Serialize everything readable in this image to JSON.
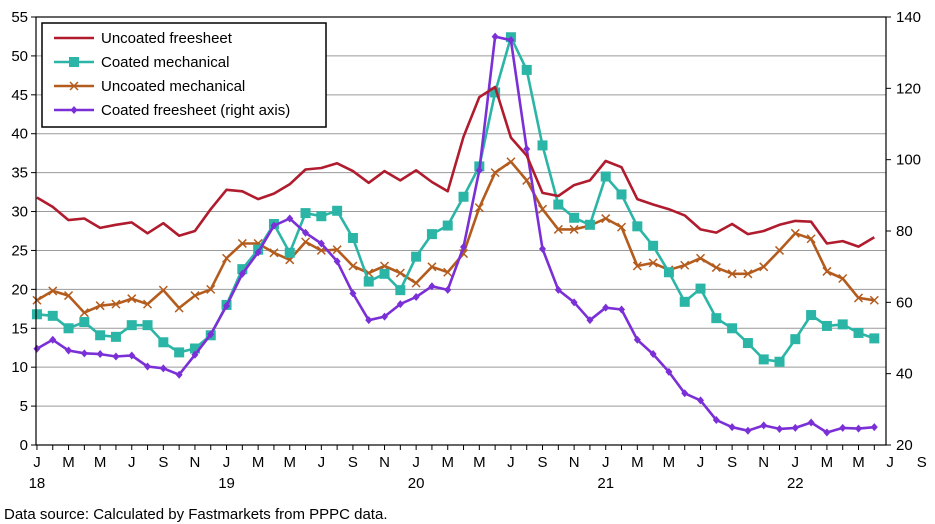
{
  "chart_data": {
    "type": "line",
    "title": "",
    "xlabel": "",
    "ylabel": "",
    "y2label": "",
    "ylim": [
      0,
      55
    ],
    "y2lim": [
      20,
      140
    ],
    "yticks": [
      0,
      5,
      10,
      15,
      20,
      25,
      30,
      35,
      40,
      45,
      50,
      55
    ],
    "y2ticks": [
      20,
      40,
      60,
      80,
      100,
      120,
      140
    ],
    "x_tick_labels": [
      "J",
      "M",
      "M",
      "J",
      "S",
      "N",
      "J",
      "M",
      "M",
      "J",
      "S",
      "N",
      "J",
      "M",
      "M",
      "J",
      "S",
      "N",
      "J",
      "M",
      "M",
      "J",
      "S",
      "N",
      "J",
      "M",
      "M",
      "J",
      "S",
      "N",
      "J",
      "M",
      "M"
    ],
    "year_labels": [
      {
        "index": 0,
        "label": "18"
      },
      {
        "index": 12,
        "label": "19"
      },
      {
        "index": 24,
        "label": "20"
      },
      {
        "index": 36,
        "label": "21"
      },
      {
        "index": 48,
        "label": "22"
      }
    ],
    "months": [
      "Jan 2018",
      "Feb 2018",
      "Mar 2018",
      "Apr 2018",
      "May 2018",
      "Jun 2018",
      "Jul 2018",
      "Aug 2018",
      "Sep 2018",
      "Oct 2018",
      "Nov 2018",
      "Dec 2018",
      "Jan 2019",
      "Feb 2019",
      "Mar 2019",
      "Apr 2019",
      "May 2019",
      "Jun 2019",
      "Jul 2019",
      "Aug 2019",
      "Sep 2019",
      "Oct 2019",
      "Nov 2019",
      "Dec 2019",
      "Jan 2020",
      "Feb 2020",
      "Mar 2020",
      "Apr 2020",
      "May 2020",
      "Jun 2020",
      "Jul 2020",
      "Aug 2020",
      "Sep 2020",
      "Oct 2020",
      "Nov 2020",
      "Dec 2020",
      "Jan 2021",
      "Feb 2021",
      "Mar 2021",
      "Apr 2021",
      "May 2021",
      "Jun 2021",
      "Jul 2021",
      "Aug 2021",
      "Sep 2021",
      "Oct 2021",
      "Nov 2021",
      "Dec 2021",
      "Jan 2022",
      "Feb 2022",
      "Mar 2022",
      "Apr 2022",
      "May 2022",
      "Jun 2022"
    ],
    "series": [
      {
        "name": "Uncoated freesheet",
        "axis": "left",
        "color": "#b01c2e",
        "marker": "none",
        "values": [
          31.8,
          30.6,
          28.9,
          29.1,
          27.9,
          28.3,
          28.6,
          27.2,
          28.5,
          26.9,
          27.5,
          30.3,
          32.8,
          32.6,
          31.6,
          32.3,
          33.5,
          35.4,
          35.6,
          36.2,
          35.2,
          33.7,
          35.2,
          34.0,
          35.3,
          33.8,
          32.6,
          39.6,
          44.7,
          46.0,
          39.5,
          37.2,
          32.4,
          32.0,
          33.4,
          34.0,
          36.5,
          35.7,
          31.6,
          30.9,
          30.3,
          29.5,
          27.7,
          27.3,
          28.4,
          27.1,
          27.5,
          28.3,
          28.8,
          28.7,
          25.9,
          26.2,
          25.5,
          26.7
        ]
      },
      {
        "name": "Coated mechanical",
        "axis": "left",
        "color": "#2bb5a6",
        "marker": "square",
        "values": [
          16.8,
          16.6,
          15.0,
          15.8,
          14.1,
          13.9,
          15.4,
          15.4,
          13.2,
          11.9,
          12.4,
          14.1,
          18.0,
          22.6,
          25.1,
          28.4,
          24.7,
          29.8,
          29.4,
          30.1,
          26.6,
          21.0,
          22.0,
          19.9,
          24.2,
          27.1,
          28.2,
          31.9,
          35.8,
          45.3,
          52.4,
          48.2,
          38.5,
          30.9,
          29.2,
          28.3,
          34.5,
          32.2,
          28.1,
          25.6,
          22.2,
          18.4,
          20.1,
          16.3,
          15.0,
          13.1,
          11.0,
          10.7,
          13.6,
          16.7,
          15.3,
          15.5,
          14.4,
          13.7
        ]
      },
      {
        "name": "Uncoated mechanical",
        "axis": "left",
        "color": "#b35c1e",
        "marker": "cross",
        "values": [
          18.6,
          19.8,
          19.2,
          17.0,
          17.9,
          18.1,
          18.8,
          18.1,
          19.9,
          17.6,
          19.2,
          20.0,
          24.0,
          25.9,
          25.9,
          24.7,
          23.8,
          26.1,
          25.0,
          25.1,
          23.0,
          22.1,
          23.0,
          22.1,
          20.8,
          22.9,
          22.2,
          24.6,
          30.5,
          35.0,
          36.4,
          34.0,
          30.3,
          27.7,
          27.7,
          28.2,
          29.1,
          28.0,
          23.0,
          23.4,
          22.5,
          23.1,
          24.0,
          22.8,
          22.0,
          22.0,
          22.9,
          25.0,
          27.2,
          26.5,
          22.3,
          21.4,
          18.9,
          18.6
        ]
      },
      {
        "name": "Coated freesheet (right axis)",
        "axis": "right",
        "color": "#7b2fd6",
        "marker": "diamond",
        "values": [
          47.0,
          49.5,
          46.5,
          45.7,
          45.5,
          44.8,
          45.1,
          42.0,
          41.5,
          39.7,
          45.3,
          51.0,
          59.0,
          68.0,
          74.0,
          81.5,
          83.5,
          79.5,
          76.5,
          71.5,
          62.5,
          55.0,
          56.0,
          59.5,
          61.5,
          64.5,
          63.5,
          75.5,
          97.0,
          134.5,
          133.5,
          103.0,
          75.0,
          63.5,
          60.0,
          55.0,
          58.5,
          58.0,
          49.5,
          45.5,
          40.5,
          34.5,
          32.5,
          27.0,
          25.0,
          24.0,
          25.5,
          24.5,
          24.8,
          26.3,
          23.5,
          24.8,
          24.6,
          25.0
        ]
      }
    ],
    "legend_position": "top-left"
  },
  "source_note": "Data source: Calculated by Fastmarkets from PPPC data."
}
